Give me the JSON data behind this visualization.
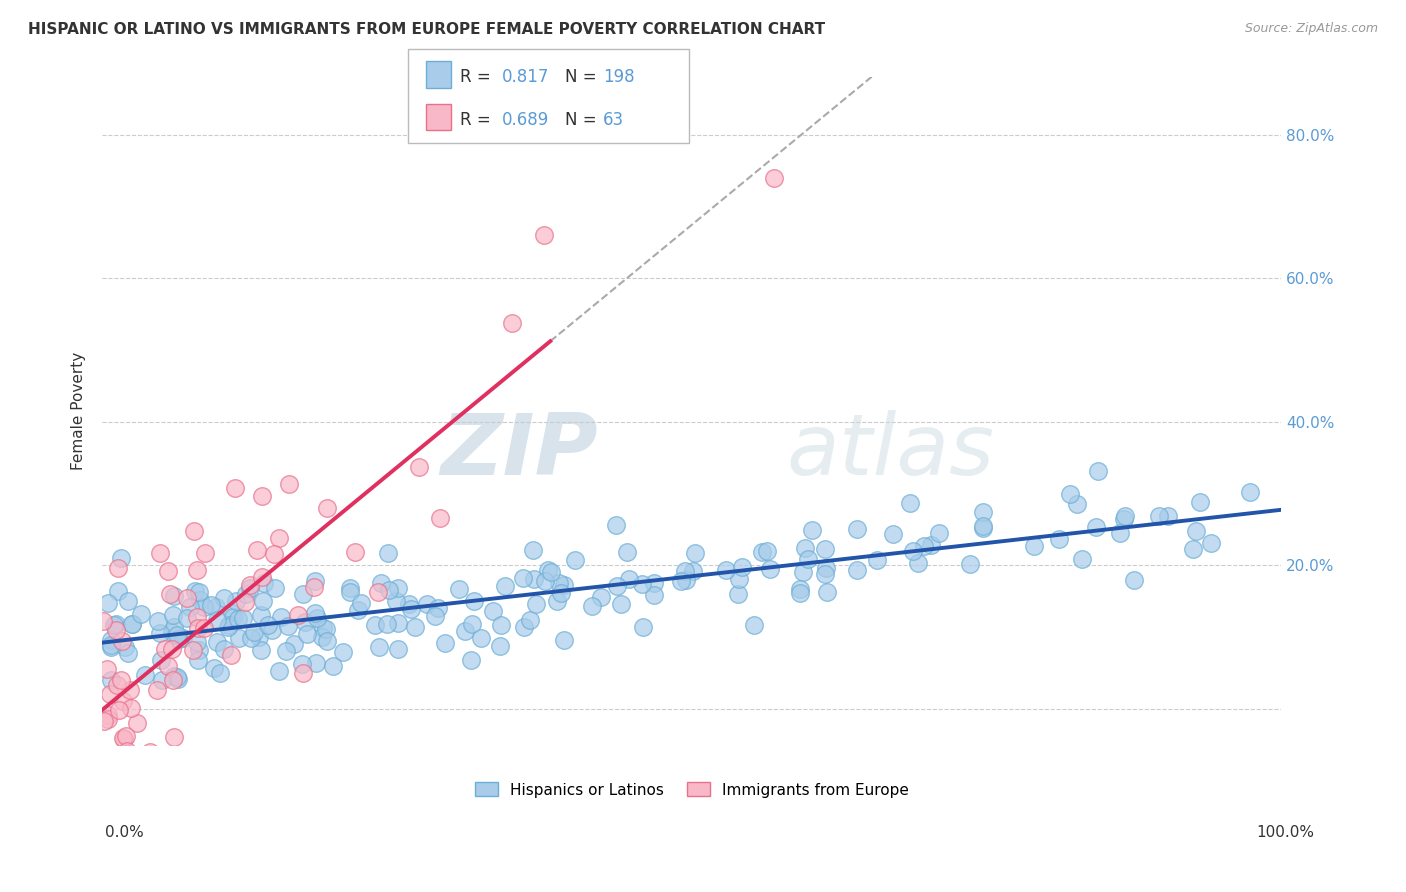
{
  "title": "HISPANIC OR LATINO VS IMMIGRANTS FROM EUROPE FEMALE POVERTY CORRELATION CHART",
  "source": "Source: ZipAtlas.com",
  "ylabel": "Female Poverty",
  "xlim": [
    0,
    1.0
  ],
  "ylim": [
    -0.05,
    0.88
  ],
  "series1_color": "#A8CCEA",
  "series1_edgecolor": "#6BAED6",
  "series2_color": "#F9B8C8",
  "series2_edgecolor": "#E8708A",
  "series1_R": 0.817,
  "series1_N": 198,
  "series2_R": 0.689,
  "series2_N": 63,
  "series1_label": "Hispanics or Latinos",
  "series2_label": "Immigrants from Europe",
  "line1_color": "#2255AA",
  "line2_color": "#E03060",
  "watermark_zip": "ZIP",
  "watermark_atlas": "atlas",
  "background_color": "#FFFFFF",
  "grid_color": "#CCCCCC",
  "label_color_blue": "#5B9BD5",
  "label_color_dark": "#333333"
}
